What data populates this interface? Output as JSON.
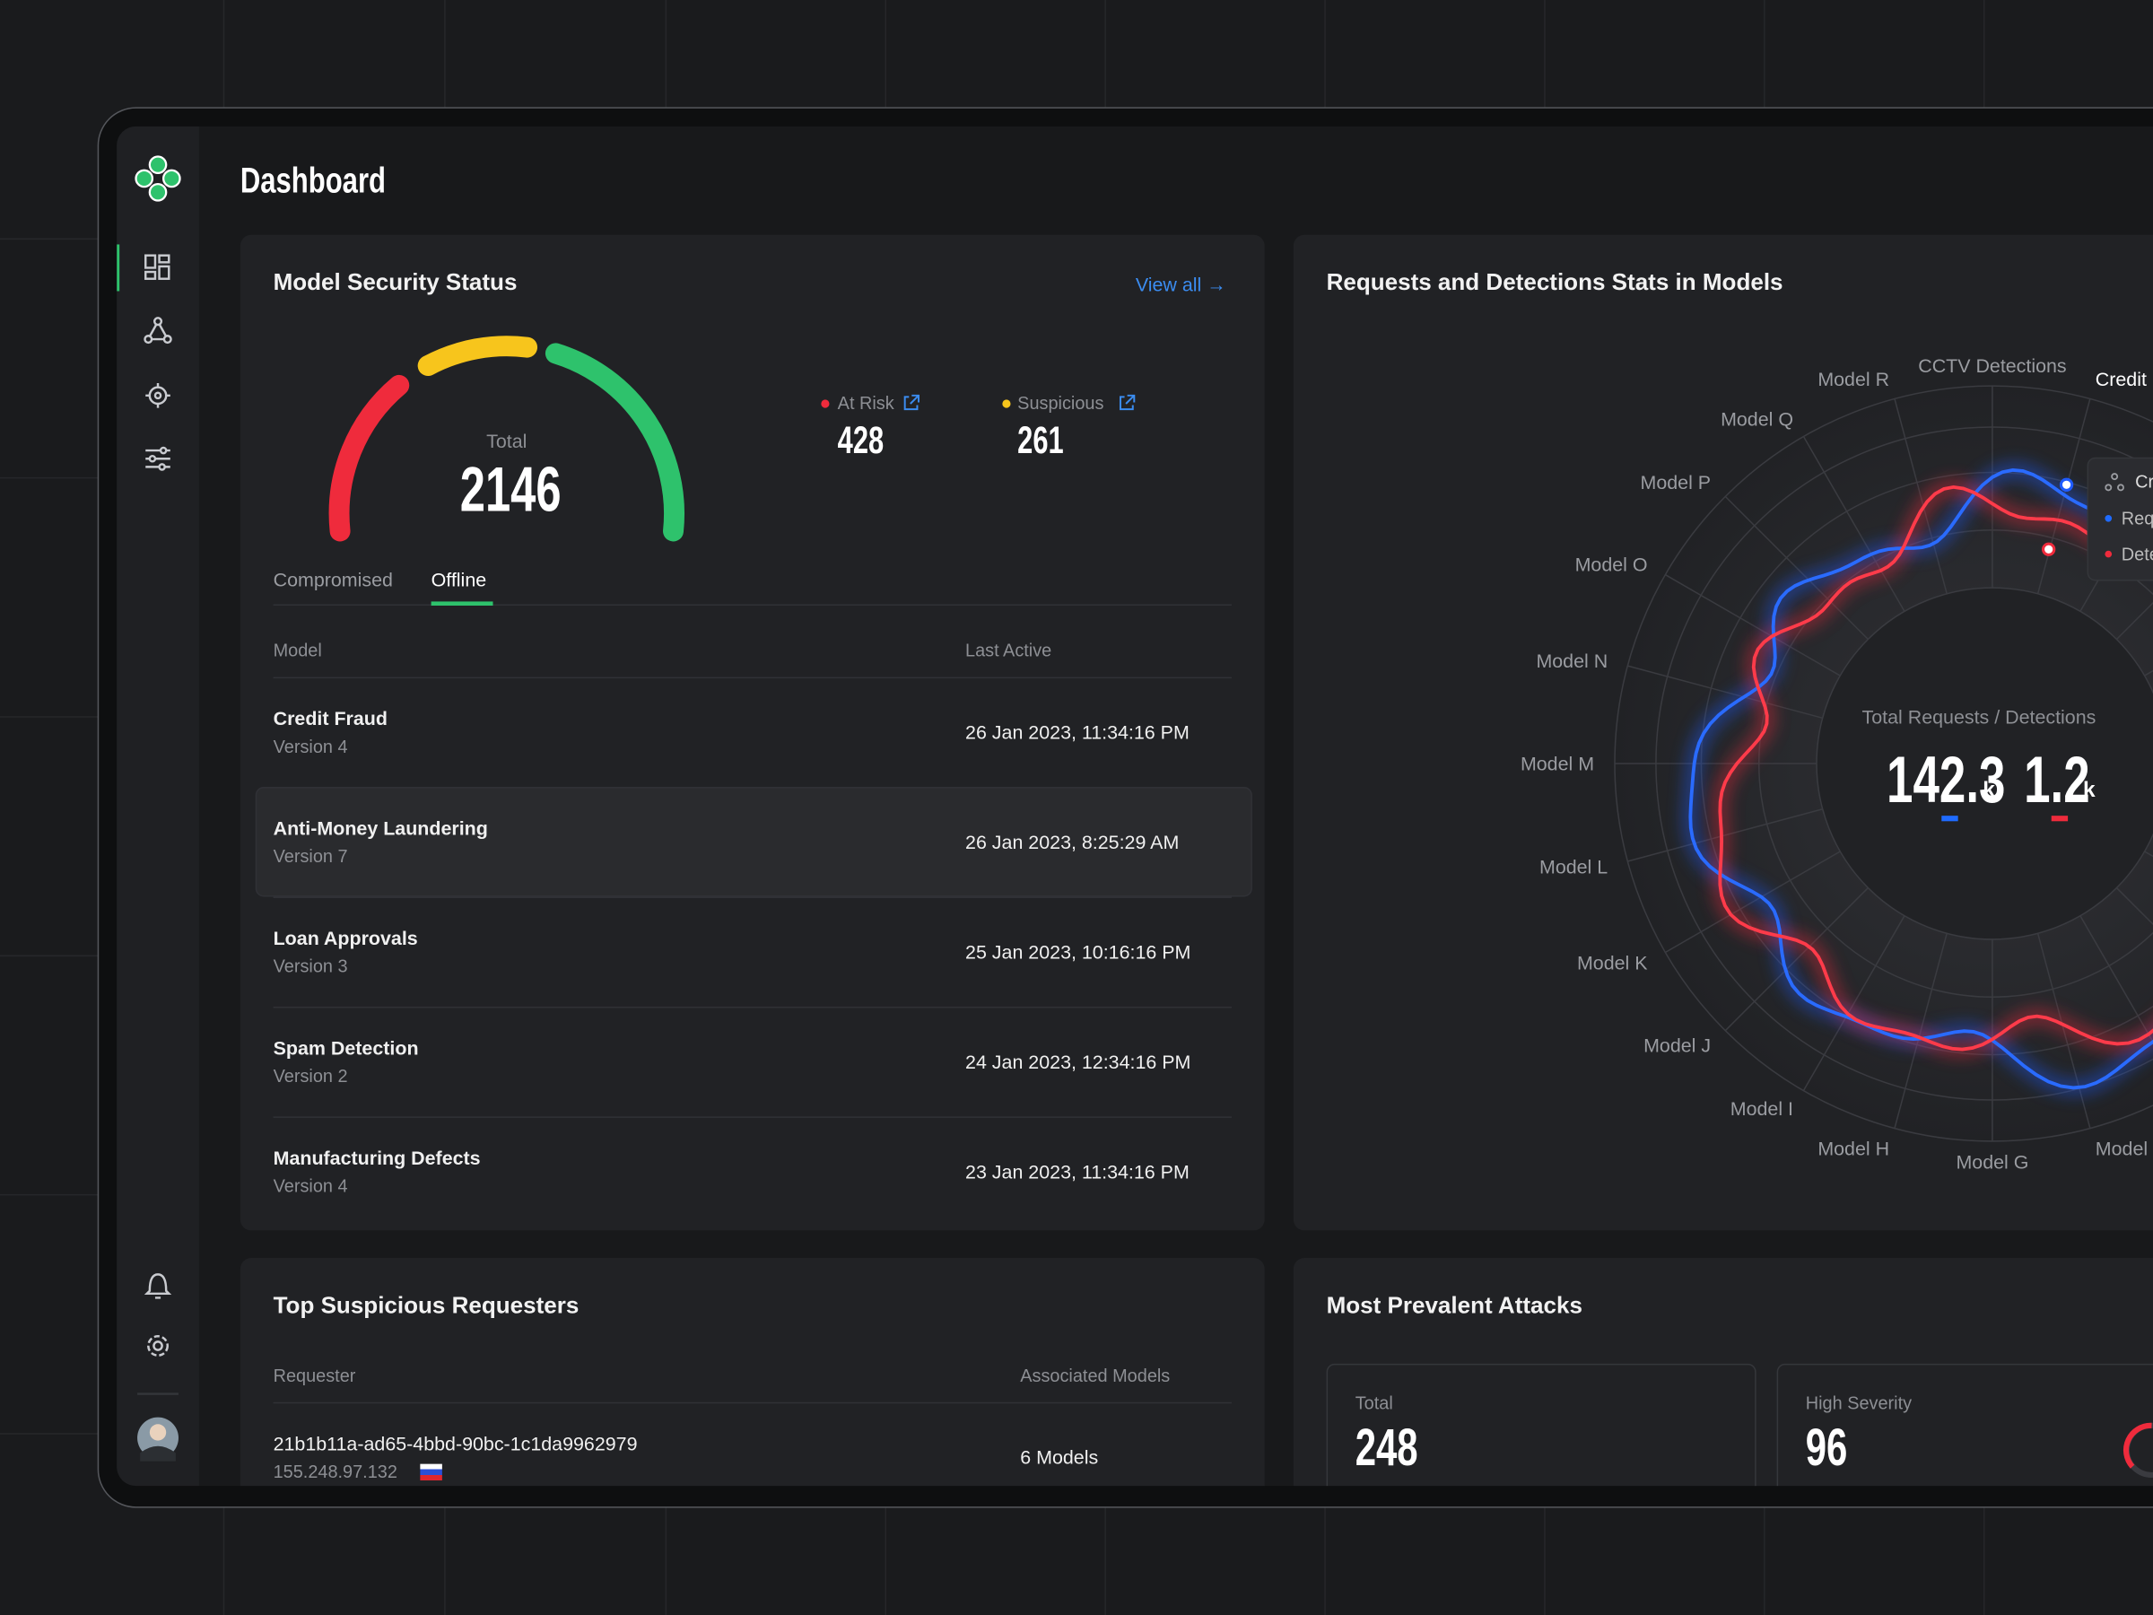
{
  "header": {
    "title": "Dashboard"
  },
  "security": {
    "title": "Model Security Status",
    "view_all": "View all →",
    "gauge_label": "Total",
    "total": 2146,
    "stats": [
      {
        "label": "At Risk",
        "value": 428
      },
      {
        "label": "Suspicious",
        "value": 261
      }
    ],
    "tabs": [
      "Compromised",
      "Offline"
    ],
    "columns": [
      "Model",
      "Last Active"
    ],
    "rows": [
      {
        "name": "Credit Fraud",
        "version": "Version 4",
        "last_active": "26 Jan 2023, 11:34:16 PM"
      },
      {
        "name": "Anti-Money Laundering",
        "version": "Version 7",
        "last_active": "26 Jan 2023, 8:25:29 AM"
      },
      {
        "name": "Loan Approvals",
        "version": "Version 3",
        "last_active": "25 Jan 2023, 10:16:16 PM"
      },
      {
        "name": "Spam Detection",
        "version": "Version 2",
        "last_active": "24 Jan 2023, 12:34:16 PM"
      },
      {
        "name": "Manufacturing Defects",
        "version": "Version 4",
        "last_active": "23 Jan 2023, 11:34:16 PM"
      }
    ]
  },
  "requests": {
    "title": "Requests and Detections Stats in Models",
    "axis_labels": [
      "CCTV Detections",
      "Credit",
      "Model R",
      "Model Q",
      "Model P",
      "Model O",
      "Model N",
      "Model M",
      "Model L",
      "Model K",
      "Model J",
      "Model I",
      "Model H",
      "Model G",
      "Model"
    ],
    "center_label": "Total Requests / Detections",
    "requests": 142.3,
    "requests_unit": "k",
    "detections": 1.2,
    "detections_unit": "k",
    "tooltip": [
      "Cr",
      "Req",
      "Dete"
    ]
  },
  "requesters": {
    "title": "Top Suspicious Requesters",
    "columns": [
      "Requester",
      "Associated Models"
    ],
    "rows": [
      {
        "id": "21b1b11a-ad65-4bbd-90bc-1c1da9962979",
        "ip": "155.248.97.132",
        "models": "6 Models"
      }
    ]
  },
  "attacks": {
    "title": "Most Prevalent Attacks",
    "stats": [
      {
        "label": "Total",
        "value": 248
      },
      {
        "label": "High Severity",
        "value": 96
      }
    ]
  }
}
